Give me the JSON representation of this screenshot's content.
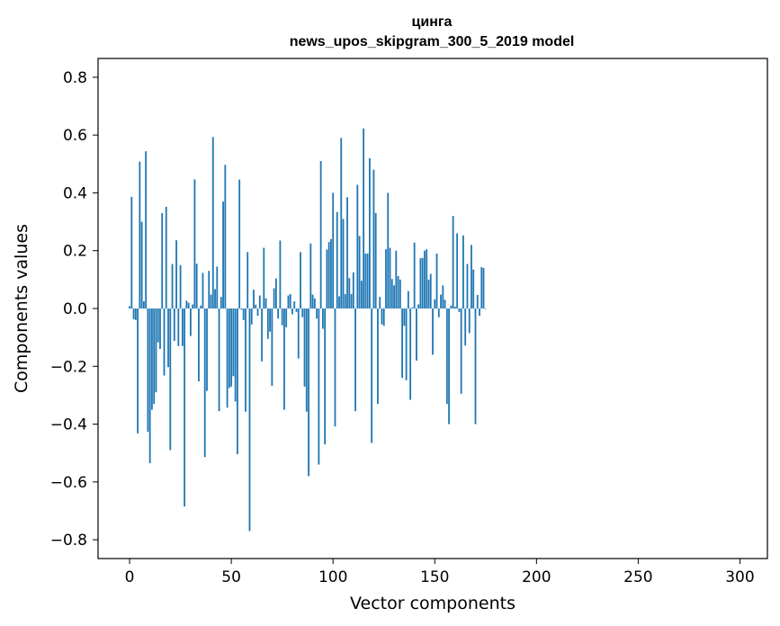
{
  "chart_data": {
    "type": "bar",
    "title": "цинга",
    "subtitle": "news_upos_skipgram_300_5_2019 model",
    "xlabel": "Vector components",
    "ylabel": "Components values",
    "xlim": [
      -15.5,
      313.5
    ],
    "ylim": [
      -0.865,
      0.865
    ],
    "xticks": [
      0,
      50,
      100,
      150,
      200,
      250,
      300
    ],
    "xtick_labels": [
      "0",
      "50",
      "100",
      "150",
      "200",
      "250",
      "300"
    ],
    "yticks": [
      0.8,
      0.6,
      0.4,
      0.2,
      0.0,
      -0.2,
      -0.4,
      -0.6,
      -0.8
    ],
    "ytick_labels": [
      "0.8",
      "0.6",
      "0.4",
      "0.2",
      "0.0",
      "−0.2",
      "−0.4",
      "−0.6",
      "−0.8"
    ],
    "bar_color": "#1f77b4",
    "grid": false,
    "series": [
      {
        "name": "components",
        "values": [
          0.008,
          0.386,
          -0.037,
          -0.04,
          -0.432,
          0.508,
          0.3,
          0.025,
          0.544,
          -0.427,
          -0.535,
          -0.35,
          -0.33,
          -0.29,
          -0.117,
          -0.14,
          0.33,
          -0.232,
          0.352,
          -0.203,
          -0.49,
          0.154,
          -0.112,
          0.236,
          -0.13,
          0.15,
          -0.13,
          -0.685,
          0.027,
          0.02,
          -0.095,
          0.014,
          0.447,
          0.155,
          -0.252,
          0.01,
          0.123,
          -0.514,
          -0.285,
          0.13,
          0.048,
          0.593,
          0.067,
          0.145,
          -0.355,
          0.04,
          0.37,
          0.497,
          -0.343,
          -0.275,
          -0.27,
          -0.234,
          -0.322,
          -0.504,
          0.446,
          -0.004,
          -0.04,
          -0.357,
          0.195,
          -0.77,
          -0.055,
          0.065,
          0.013,
          -0.025,
          0.045,
          -0.183,
          0.21,
          0.035,
          -0.105,
          -0.08,
          -0.268,
          0.07,
          0.104,
          -0.035,
          0.235,
          -0.058,
          -0.35,
          -0.065,
          0.045,
          0.05,
          -0.02,
          0.025,
          -0.012,
          -0.173,
          0.195,
          -0.03,
          -0.27,
          -0.357,
          -0.58,
          0.225,
          0.048,
          0.035,
          -0.035,
          -0.54,
          0.51,
          -0.07,
          -0.47,
          0.204,
          0.23,
          0.24,
          0.4,
          -0.408,
          0.334,
          0.042,
          0.59,
          0.31,
          0.05,
          0.385,
          0.105,
          0.05,
          0.125,
          -0.355,
          0.428,
          0.251,
          0.096,
          0.623,
          0.19,
          0.19,
          0.52,
          -0.465,
          0.48,
          0.33,
          -0.33,
          0.04,
          -0.055,
          -0.06,
          0.205,
          0.4,
          0.21,
          0.102,
          0.08,
          0.2,
          0.112,
          0.1,
          -0.24,
          -0.06,
          -0.248,
          0.06,
          -0.316,
          0.004,
          0.228,
          -0.18,
          0.014,
          0.174,
          0.175,
          0.2,
          0.205,
          0.1,
          0.12,
          -0.16,
          0.032,
          0.19,
          -0.03,
          0.048,
          0.08,
          0.03,
          -0.33,
          -0.4,
          0.01,
          0.32,
          0.006,
          0.26,
          -0.012,
          -0.295,
          0.253,
          -0.128,
          0.154,
          -0.085,
          0.22,
          0.135,
          -0.4,
          0.047,
          -0.025,
          0.143,
          0.14,
          -0.0
        ]
      }
    ]
  }
}
